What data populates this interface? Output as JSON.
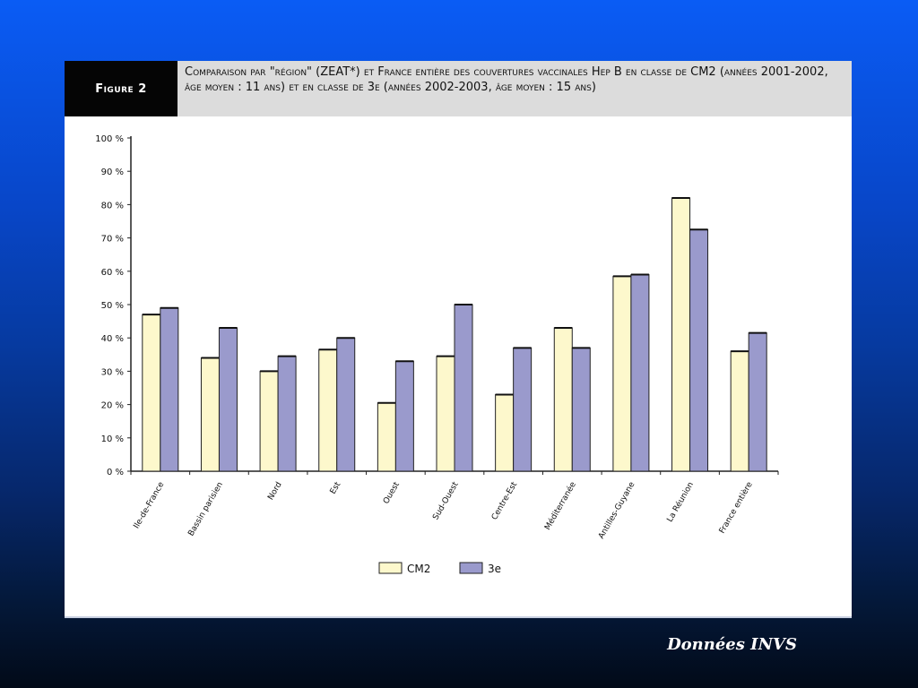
{
  "figure": {
    "label": "Figure 2",
    "title": "Comparaison par \"région\" (ZEAT*) et France entière des couvertures vaccinales Hep B en classe de CM2 (années 2001-2002, âge moyen : 11 ans) et en classe de 3e (années 2002-2003, âge moyen : 15 ans)"
  },
  "source": "Données INVS",
  "colors": {
    "cm2": "#fdf8cc",
    "troisieme": "#9a9acc",
    "background": "#0846c8"
  },
  "chart_data": {
    "type": "bar",
    "title": "",
    "xlabel": "",
    "ylabel": "",
    "ylim": [
      0,
      100
    ],
    "yticks": [
      0,
      10,
      20,
      30,
      40,
      50,
      60,
      70,
      80,
      90,
      100
    ],
    "ytick_labels": [
      "0 %",
      "10 %",
      "20 %",
      "30 %",
      "40 %",
      "50 %",
      "60 %",
      "70 %",
      "80 %",
      "90 %",
      "100 %"
    ],
    "categories": [
      "Ile-de-France",
      "Bassin parisien",
      "Nord",
      "Est",
      "Ouest",
      "Sud-Ouest",
      "Centre-Est",
      "Méditerranée",
      "Antilles-Guyane",
      "La Réunion",
      "France entière"
    ],
    "series": [
      {
        "name": "CM2",
        "values": [
          47,
          34,
          30,
          36.5,
          20.5,
          34.5,
          23,
          43,
          58.5,
          82,
          36
        ]
      },
      {
        "name": "3e",
        "values": [
          49,
          43,
          34.5,
          40,
          33,
          50,
          37,
          37,
          59,
          72.5,
          41.5
        ]
      }
    ],
    "grid": false,
    "legend_position": "bottom-center"
  }
}
